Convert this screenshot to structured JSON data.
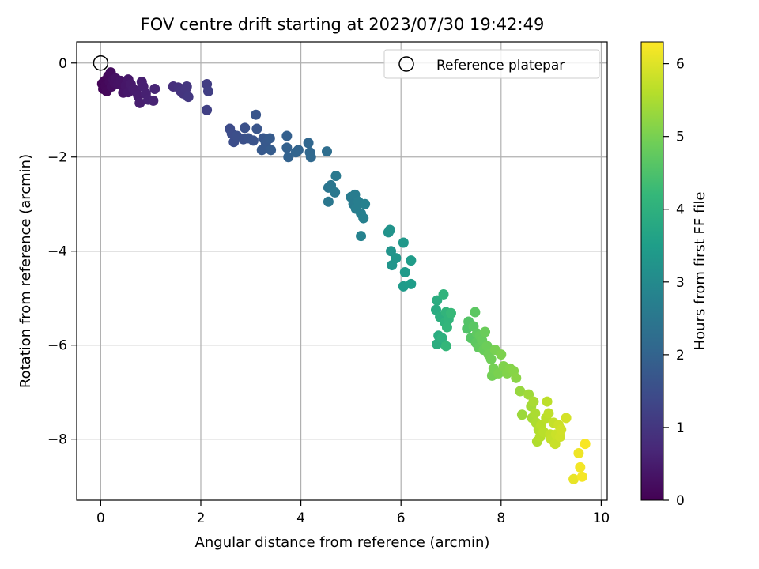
{
  "chart_data": {
    "type": "scatter",
    "title": "FOV centre drift starting at 2023/07/30 19:42:49",
    "xlabel": "Angular distance from reference (arcmin)",
    "ylabel": "Rotation from reference (arcmin)",
    "xlim": [
      -0.48,
      10.12
    ],
    "ylim": [
      -9.3,
      0.45
    ],
    "xticks": [
      0,
      2,
      4,
      6,
      8,
      10
    ],
    "yticks": [
      0,
      -2,
      -4,
      -6,
      -8
    ],
    "xtick_labels": [
      "0",
      "2",
      "4",
      "6",
      "8",
      "10"
    ],
    "ytick_labels": [
      "0",
      "−2",
      "−4",
      "−6",
      "−8"
    ],
    "grid": true,
    "legend": {
      "placement": "top-right",
      "entries": [
        "Reference platepar"
      ]
    },
    "reference_point": {
      "x": 0,
      "y": 0
    },
    "colorbar": {
      "label": "Hours from first FF file",
      "colormap": "viridis",
      "range": [
        0,
        6.3
      ],
      "ticks": [
        0,
        1,
        2,
        3,
        4,
        5,
        6
      ],
      "tick_labels": [
        "0",
        "1",
        "2",
        "3",
        "4",
        "5",
        "6"
      ]
    },
    "colormap_stops": [
      "#440154",
      "#482878",
      "#3e4989",
      "#31688e",
      "#26828e",
      "#1f9e89",
      "#35b779",
      "#6ece58",
      "#b5de2b",
      "#fde725"
    ],
    "points": [
      {
        "x": 0.03,
        "y": -0.44,
        "h": 0.05
      },
      {
        "x": 0.05,
        "y": -0.55,
        "h": 0.08
      },
      {
        "x": 0.08,
        "y": -0.38,
        "h": 0.1
      },
      {
        "x": 0.1,
        "y": -0.48,
        "h": 0.12
      },
      {
        "x": 0.12,
        "y": -0.6,
        "h": 0.14
      },
      {
        "x": 0.15,
        "y": -0.28,
        "h": 0.16
      },
      {
        "x": 0.18,
        "y": -0.4,
        "h": 0.18
      },
      {
        "x": 0.2,
        "y": -0.2,
        "h": 0.2
      },
      {
        "x": 0.22,
        "y": -0.5,
        "h": 0.22
      },
      {
        "x": 0.25,
        "y": -0.35,
        "h": 0.25
      },
      {
        "x": 0.28,
        "y": -0.42,
        "h": 0.27
      },
      {
        "x": 0.3,
        "y": -0.33,
        "h": 0.29
      },
      {
        "x": 0.35,
        "y": -0.45,
        "h": 0.31
      },
      {
        "x": 0.4,
        "y": -0.38,
        "h": 0.33
      },
      {
        "x": 0.45,
        "y": -0.63,
        "h": 0.36
      },
      {
        "x": 0.5,
        "y": -0.48,
        "h": 0.38
      },
      {
        "x": 0.55,
        "y": -0.35,
        "h": 0.4
      },
      {
        "x": 0.55,
        "y": -0.62,
        "h": 0.42
      },
      {
        "x": 0.6,
        "y": -0.45,
        "h": 0.44
      },
      {
        "x": 0.65,
        "y": -0.55,
        "h": 0.46
      },
      {
        "x": 0.7,
        "y": -0.6,
        "h": 0.48
      },
      {
        "x": 0.75,
        "y": -0.7,
        "h": 0.5
      },
      {
        "x": 0.78,
        "y": -0.85,
        "h": 0.52
      },
      {
        "x": 0.82,
        "y": -0.4,
        "h": 0.54
      },
      {
        "x": 0.85,
        "y": -0.5,
        "h": 0.56
      },
      {
        "x": 0.9,
        "y": -0.65,
        "h": 0.58
      },
      {
        "x": 0.95,
        "y": -0.78,
        "h": 0.6
      },
      {
        "x": 1.05,
        "y": -0.8,
        "h": 0.63
      },
      {
        "x": 1.08,
        "y": -0.55,
        "h": 0.66
      },
      {
        "x": 1.45,
        "y": -0.5,
        "h": 0.85
      },
      {
        "x": 1.55,
        "y": -0.52,
        "h": 0.9
      },
      {
        "x": 1.6,
        "y": -0.6,
        "h": 0.93
      },
      {
        "x": 1.65,
        "y": -0.65,
        "h": 0.96
      },
      {
        "x": 1.7,
        "y": -0.55,
        "h": 0.98
      },
      {
        "x": 1.72,
        "y": -0.5,
        "h": 1.0
      },
      {
        "x": 1.75,
        "y": -0.72,
        "h": 1.02
      },
      {
        "x": 2.12,
        "y": -0.45,
        "h": 1.15
      },
      {
        "x": 2.15,
        "y": -0.6,
        "h": 1.18
      },
      {
        "x": 2.12,
        "y": -1.0,
        "h": 1.2
      },
      {
        "x": 2.58,
        "y": -1.4,
        "h": 1.45
      },
      {
        "x": 2.62,
        "y": -1.5,
        "h": 1.48
      },
      {
        "x": 2.66,
        "y": -1.68,
        "h": 1.5
      },
      {
        "x": 2.72,
        "y": -1.55,
        "h": 1.53
      },
      {
        "x": 2.85,
        "y": -1.62,
        "h": 1.56
      },
      {
        "x": 2.88,
        "y": -1.38,
        "h": 1.58
      },
      {
        "x": 2.95,
        "y": -1.6,
        "h": 1.6
      },
      {
        "x": 3.05,
        "y": -1.65,
        "h": 1.63
      },
      {
        "x": 3.12,
        "y": -1.4,
        "h": 1.66
      },
      {
        "x": 3.1,
        "y": -1.1,
        "h": 1.68
      },
      {
        "x": 3.25,
        "y": -1.6,
        "h": 1.72
      },
      {
        "x": 3.3,
        "y": -1.7,
        "h": 1.75
      },
      {
        "x": 3.22,
        "y": -1.85,
        "h": 1.77
      },
      {
        "x": 3.38,
        "y": -1.6,
        "h": 1.8
      },
      {
        "x": 3.4,
        "y": -1.85,
        "h": 1.82
      },
      {
        "x": 3.72,
        "y": -1.55,
        "h": 1.92
      },
      {
        "x": 3.72,
        "y": -1.8,
        "h": 1.95
      },
      {
        "x": 3.75,
        "y": -2.0,
        "h": 1.97
      },
      {
        "x": 3.9,
        "y": -1.9,
        "h": 2.0
      },
      {
        "x": 3.95,
        "y": -1.85,
        "h": 2.02
      },
      {
        "x": 4.15,
        "y": -1.7,
        "h": 2.08
      },
      {
        "x": 4.18,
        "y": -1.9,
        "h": 2.1
      },
      {
        "x": 4.2,
        "y": -2.0,
        "h": 2.12
      },
      {
        "x": 4.52,
        "y": -1.88,
        "h": 2.25
      },
      {
        "x": 4.55,
        "y": -2.65,
        "h": 2.45
      },
      {
        "x": 4.6,
        "y": -2.6,
        "h": 2.48
      },
      {
        "x": 4.55,
        "y": -2.95,
        "h": 2.5
      },
      {
        "x": 4.68,
        "y": -2.75,
        "h": 2.52
      },
      {
        "x": 4.7,
        "y": -2.4,
        "h": 2.55
      },
      {
        "x": 5.0,
        "y": -2.85,
        "h": 2.6
      },
      {
        "x": 5.05,
        "y": -3.0,
        "h": 2.62
      },
      {
        "x": 5.08,
        "y": -2.8,
        "h": 2.65
      },
      {
        "x": 5.1,
        "y": -3.1,
        "h": 2.68
      },
      {
        "x": 5.15,
        "y": -2.95,
        "h": 2.7
      },
      {
        "x": 5.2,
        "y": -3.2,
        "h": 2.72
      },
      {
        "x": 5.25,
        "y": -3.3,
        "h": 2.75
      },
      {
        "x": 5.28,
        "y": -3.0,
        "h": 2.78
      },
      {
        "x": 5.2,
        "y": -3.68,
        "h": 2.8
      },
      {
        "x": 5.75,
        "y": -3.6,
        "h": 3.2
      },
      {
        "x": 5.78,
        "y": -3.55,
        "h": 3.22
      },
      {
        "x": 5.8,
        "y": -4.0,
        "h": 3.25
      },
      {
        "x": 5.82,
        "y": -4.3,
        "h": 3.28
      },
      {
        "x": 5.9,
        "y": -4.15,
        "h": 3.3
      },
      {
        "x": 6.05,
        "y": -3.82,
        "h": 3.35
      },
      {
        "x": 6.08,
        "y": -4.45,
        "h": 3.4
      },
      {
        "x": 6.05,
        "y": -4.75,
        "h": 3.42
      },
      {
        "x": 6.2,
        "y": -4.2,
        "h": 3.45
      },
      {
        "x": 6.2,
        "y": -4.7,
        "h": 3.48
      },
      {
        "x": 6.7,
        "y": -5.25,
        "h": 3.85
      },
      {
        "x": 6.72,
        "y": -5.05,
        "h": 3.9
      },
      {
        "x": 6.78,
        "y": -5.4,
        "h": 3.95
      },
      {
        "x": 6.75,
        "y": -5.8,
        "h": 3.88
      },
      {
        "x": 6.72,
        "y": -5.98,
        "h": 3.92
      },
      {
        "x": 6.82,
        "y": -5.85,
        "h": 4.0
      },
      {
        "x": 6.88,
        "y": -5.52,
        "h": 4.05
      },
      {
        "x": 6.85,
        "y": -4.92,
        "h": 4.08
      },
      {
        "x": 6.9,
        "y": -5.3,
        "h": 4.1
      },
      {
        "x": 6.95,
        "y": -5.45,
        "h": 4.12
      },
      {
        "x": 6.92,
        "y": -5.62,
        "h": 4.15
      },
      {
        "x": 6.9,
        "y": -6.02,
        "h": 4.18
      },
      {
        "x": 7.0,
        "y": -5.32,
        "h": 4.22
      },
      {
        "x": 7.32,
        "y": -5.65,
        "h": 4.55
      },
      {
        "x": 7.35,
        "y": -5.5,
        "h": 4.58
      },
      {
        "x": 7.4,
        "y": -5.85,
        "h": 4.62
      },
      {
        "x": 7.45,
        "y": -5.6,
        "h": 4.65
      },
      {
        "x": 7.48,
        "y": -5.3,
        "h": 4.68
      },
      {
        "x": 7.5,
        "y": -5.95,
        "h": 4.7
      },
      {
        "x": 7.52,
        "y": -5.75,
        "h": 4.72
      },
      {
        "x": 7.55,
        "y": -6.05,
        "h": 4.75
      },
      {
        "x": 7.58,
        "y": -5.8,
        "h": 4.78
      },
      {
        "x": 7.62,
        "y": -5.9,
        "h": 4.8
      },
      {
        "x": 7.65,
        "y": -6.1,
        "h": 4.83
      },
      {
        "x": 7.68,
        "y": -5.72,
        "h": 4.85
      },
      {
        "x": 7.72,
        "y": -6.02,
        "h": 4.87
      },
      {
        "x": 7.75,
        "y": -6.2,
        "h": 4.9
      },
      {
        "x": 7.8,
        "y": -6.3,
        "h": 4.92
      },
      {
        "x": 7.82,
        "y": -6.65,
        "h": 4.95
      },
      {
        "x": 7.85,
        "y": -6.5,
        "h": 4.97
      },
      {
        "x": 7.88,
        "y": -6.1,
        "h": 5.0
      },
      {
        "x": 7.95,
        "y": -6.6,
        "h": 5.02
      },
      {
        "x": 8.0,
        "y": -6.2,
        "h": 5.05
      },
      {
        "x": 8.05,
        "y": -6.45,
        "h": 5.08
      },
      {
        "x": 8.12,
        "y": -6.6,
        "h": 5.1
      },
      {
        "x": 8.18,
        "y": -6.5,
        "h": 5.12
      },
      {
        "x": 8.25,
        "y": -6.55,
        "h": 5.15
      },
      {
        "x": 8.3,
        "y": -6.7,
        "h": 5.18
      },
      {
        "x": 8.38,
        "y": -6.98,
        "h": 5.3
      },
      {
        "x": 8.42,
        "y": -7.48,
        "h": 5.35
      },
      {
        "x": 8.55,
        "y": -7.05,
        "h": 5.38
      },
      {
        "x": 8.6,
        "y": -7.3,
        "h": 5.42
      },
      {
        "x": 8.62,
        "y": -7.55,
        "h": 5.45
      },
      {
        "x": 8.65,
        "y": -7.2,
        "h": 5.48
      },
      {
        "x": 8.68,
        "y": -7.45,
        "h": 5.5
      },
      {
        "x": 8.7,
        "y": -7.65,
        "h": 5.52
      },
      {
        "x": 8.72,
        "y": -8.05,
        "h": 5.55
      },
      {
        "x": 8.75,
        "y": -7.8,
        "h": 5.57
      },
      {
        "x": 8.78,
        "y": -7.95,
        "h": 5.6
      },
      {
        "x": 8.8,
        "y": -7.7,
        "h": 5.62
      },
      {
        "x": 8.85,
        "y": -7.85,
        "h": 5.64
      },
      {
        "x": 8.9,
        "y": -7.55,
        "h": 5.66
      },
      {
        "x": 8.92,
        "y": -7.2,
        "h": 5.68
      },
      {
        "x": 8.95,
        "y": -7.45,
        "h": 5.7
      },
      {
        "x": 8.98,
        "y": -7.9,
        "h": 5.72
      },
      {
        "x": 9.0,
        "y": -8.0,
        "h": 5.74
      },
      {
        "x": 9.05,
        "y": -7.65,
        "h": 5.76
      },
      {
        "x": 9.08,
        "y": -8.1,
        "h": 5.78
      },
      {
        "x": 9.1,
        "y": -7.9,
        "h": 5.8
      },
      {
        "x": 9.15,
        "y": -7.7,
        "h": 5.82
      },
      {
        "x": 9.18,
        "y": -7.95,
        "h": 5.84
      },
      {
        "x": 9.2,
        "y": -7.8,
        "h": 5.86
      },
      {
        "x": 9.3,
        "y": -7.55,
        "h": 5.9
      },
      {
        "x": 9.45,
        "y": -8.85,
        "h": 6.1
      },
      {
        "x": 9.55,
        "y": -8.3,
        "h": 6.15
      },
      {
        "x": 9.58,
        "y": -8.6,
        "h": 6.2
      },
      {
        "x": 9.62,
        "y": -8.8,
        "h": 6.22
      },
      {
        "x": 9.68,
        "y": -8.1,
        "h": 6.25
      }
    ]
  }
}
